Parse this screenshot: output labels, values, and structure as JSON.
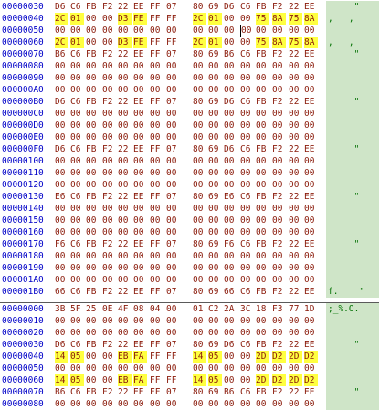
{
  "colors": {
    "address": "#0000c8",
    "bytes": "#8a1a0a",
    "highlight": "#ffff40",
    "ascii_bg": "#cfe5c8",
    "ascii_text": "#007000"
  },
  "section1": [
    {
      "addr": "00000030",
      "bytes": [
        "D6",
        "C6",
        "FB",
        "F2",
        "22",
        "EE",
        "FF",
        "07",
        "80",
        "69",
        "D6",
        "C6",
        "FB",
        "F2",
        "22",
        "EE"
      ],
      "hl": [],
      "ascii": "     \""
    },
    {
      "addr": "00000040",
      "bytes": [
        "2C",
        "01",
        "00",
        "00",
        "D3",
        "FE",
        "FF",
        "FF",
        "2C",
        "01",
        "00",
        "00",
        "75",
        "8A",
        "75",
        "8A"
      ],
      "hl": [
        0,
        1,
        4,
        5,
        8,
        9,
        12,
        13,
        14,
        15
      ],
      "ascii": ",   ,"
    },
    {
      "addr": "00000050",
      "bytes": [
        "00",
        "00",
        "00",
        "00",
        "00",
        "00",
        "00",
        "00",
        "00",
        "00",
        "00",
        "00",
        "00",
        "00",
        "00",
        "00"
      ],
      "hl": [],
      "ascii": "",
      "cursor": 11
    },
    {
      "addr": "00000060",
      "bytes": [
        "2C",
        "01",
        "00",
        "00",
        "D3",
        "FE",
        "FF",
        "FF",
        "2C",
        "01",
        "00",
        "00",
        "75",
        "8A",
        "75",
        "8A"
      ],
      "hl": [
        0,
        1,
        4,
        5,
        8,
        9,
        12,
        13,
        14,
        15
      ],
      "ascii": ",   ,"
    },
    {
      "addr": "00000070",
      "bytes": [
        "B6",
        "C6",
        "FB",
        "F2",
        "22",
        "EE",
        "FF",
        "07",
        "80",
        "69",
        "B6",
        "C6",
        "FB",
        "F2",
        "22",
        "EE"
      ],
      "hl": [],
      "ascii": "     \""
    },
    {
      "addr": "00000080",
      "bytes": [
        "00",
        "00",
        "00",
        "00",
        "00",
        "00",
        "00",
        "00",
        "00",
        "00",
        "00",
        "00",
        "00",
        "00",
        "00",
        "00"
      ],
      "hl": [],
      "ascii": ""
    },
    {
      "addr": "00000090",
      "bytes": [
        "00",
        "00",
        "00",
        "00",
        "00",
        "00",
        "00",
        "00",
        "00",
        "00",
        "00",
        "00",
        "00",
        "00",
        "00",
        "00"
      ],
      "hl": [],
      "ascii": ""
    },
    {
      "addr": "000000A0",
      "bytes": [
        "00",
        "00",
        "00",
        "00",
        "00",
        "00",
        "00",
        "00",
        "00",
        "00",
        "00",
        "00",
        "00",
        "00",
        "00",
        "00"
      ],
      "hl": [],
      "ascii": ""
    },
    {
      "addr": "000000B0",
      "bytes": [
        "D6",
        "C6",
        "FB",
        "F2",
        "22",
        "EE",
        "FF",
        "07",
        "80",
        "69",
        "D6",
        "C6",
        "FB",
        "F2",
        "22",
        "EE"
      ],
      "hl": [],
      "ascii": "     \""
    },
    {
      "addr": "000000C0",
      "bytes": [
        "00",
        "00",
        "00",
        "00",
        "00",
        "00",
        "00",
        "00",
        "00",
        "00",
        "00",
        "00",
        "00",
        "00",
        "00",
        "00"
      ],
      "hl": [],
      "ascii": ""
    },
    {
      "addr": "000000D0",
      "bytes": [
        "00",
        "00",
        "00",
        "00",
        "00",
        "00",
        "00",
        "00",
        "00",
        "00",
        "00",
        "00",
        "00",
        "00",
        "00",
        "00"
      ],
      "hl": [],
      "ascii": ""
    },
    {
      "addr": "000000E0",
      "bytes": [
        "00",
        "00",
        "00",
        "00",
        "00",
        "00",
        "00",
        "00",
        "00",
        "00",
        "00",
        "00",
        "00",
        "00",
        "00",
        "00"
      ],
      "hl": [],
      "ascii": ""
    },
    {
      "addr": "000000F0",
      "bytes": [
        "D6",
        "C6",
        "FB",
        "F2",
        "22",
        "EE",
        "FF",
        "07",
        "80",
        "69",
        "D6",
        "C6",
        "FB",
        "F2",
        "22",
        "EE"
      ],
      "hl": [],
      "ascii": "     \""
    },
    {
      "addr": "00000100",
      "bytes": [
        "00",
        "00",
        "00",
        "00",
        "00",
        "00",
        "00",
        "00",
        "00",
        "00",
        "00",
        "00",
        "00",
        "00",
        "00",
        "00"
      ],
      "hl": [],
      "ascii": ""
    },
    {
      "addr": "00000110",
      "bytes": [
        "00",
        "00",
        "00",
        "00",
        "00",
        "00",
        "00",
        "00",
        "00",
        "00",
        "00",
        "00",
        "00",
        "00",
        "00",
        "00"
      ],
      "hl": [],
      "ascii": ""
    },
    {
      "addr": "00000120",
      "bytes": [
        "00",
        "00",
        "00",
        "00",
        "00",
        "00",
        "00",
        "00",
        "00",
        "00",
        "00",
        "00",
        "00",
        "00",
        "00",
        "00"
      ],
      "hl": [],
      "ascii": ""
    },
    {
      "addr": "00000130",
      "bytes": [
        "E6",
        "C6",
        "FB",
        "F2",
        "22",
        "EE",
        "FF",
        "07",
        "80",
        "69",
        "E6",
        "C6",
        "FB",
        "F2",
        "22",
        "EE"
      ],
      "hl": [],
      "ascii": "     \""
    },
    {
      "addr": "00000140",
      "bytes": [
        "00",
        "00",
        "00",
        "00",
        "00",
        "00",
        "00",
        "00",
        "00",
        "00",
        "00",
        "00",
        "00",
        "00",
        "00",
        "00"
      ],
      "hl": [],
      "ascii": ""
    },
    {
      "addr": "00000150",
      "bytes": [
        "00",
        "00",
        "00",
        "00",
        "00",
        "00",
        "00",
        "00",
        "00",
        "00",
        "00",
        "00",
        "00",
        "00",
        "00",
        "00"
      ],
      "hl": [],
      "ascii": ""
    },
    {
      "addr": "00000160",
      "bytes": [
        "00",
        "00",
        "00",
        "00",
        "00",
        "00",
        "00",
        "00",
        "00",
        "00",
        "00",
        "00",
        "00",
        "00",
        "00",
        "00"
      ],
      "hl": [],
      "ascii": ""
    },
    {
      "addr": "00000170",
      "bytes": [
        "F6",
        "C6",
        "FB",
        "F2",
        "22",
        "EE",
        "FF",
        "07",
        "80",
        "69",
        "F6",
        "C6",
        "FB",
        "F2",
        "22",
        "EE"
      ],
      "hl": [],
      "ascii": "     \""
    },
    {
      "addr": "00000180",
      "bytes": [
        "00",
        "00",
        "00",
        "00",
        "00",
        "00",
        "00",
        "00",
        "00",
        "00",
        "00",
        "00",
        "00",
        "00",
        "00",
        "00"
      ],
      "hl": [],
      "ascii": ""
    },
    {
      "addr": "00000190",
      "bytes": [
        "00",
        "00",
        "00",
        "00",
        "00",
        "00",
        "00",
        "00",
        "00",
        "00",
        "00",
        "00",
        "00",
        "00",
        "00",
        "00"
      ],
      "hl": [],
      "ascii": ""
    },
    {
      "addr": "000001A0",
      "bytes": [
        "00",
        "00",
        "00",
        "00",
        "00",
        "00",
        "00",
        "00",
        "00",
        "00",
        "00",
        "00",
        "00",
        "00",
        "00",
        "00"
      ],
      "hl": [],
      "ascii": ""
    },
    {
      "addr": "000001B0",
      "bytes": [
        "66",
        "C6",
        "FB",
        "F2",
        "22",
        "EE",
        "FF",
        "07",
        "80",
        "69",
        "66",
        "C6",
        "FB",
        "F2",
        "22",
        "EE"
      ],
      "hl": [],
      "ascii": "f.    \""
    }
  ],
  "section2": [
    {
      "addr": "00000000",
      "bytes": [
        "3B",
        "5F",
        "25",
        "0E",
        "4F",
        "08",
        "04",
        "00",
        "01",
        "C2",
        "2A",
        "3C",
        "18",
        "F3",
        "77",
        "1D"
      ],
      "hl": [],
      "ascii": ";_%.O."
    },
    {
      "addr": "00000010",
      "bytes": [
        "00",
        "00",
        "00",
        "00",
        "00",
        "00",
        "00",
        "00",
        "00",
        "00",
        "00",
        "00",
        "00",
        "00",
        "00",
        "00"
      ],
      "hl": [],
      "ascii": ""
    },
    {
      "addr": "00000020",
      "bytes": [
        "00",
        "00",
        "00",
        "00",
        "00",
        "00",
        "00",
        "00",
        "00",
        "00",
        "00",
        "00",
        "00",
        "00",
        "00",
        "00"
      ],
      "hl": [],
      "ascii": ""
    },
    {
      "addr": "00000030",
      "bytes": [
        "D6",
        "C6",
        "FB",
        "F2",
        "22",
        "EE",
        "FF",
        "07",
        "80",
        "69",
        "D6",
        "C6",
        "FB",
        "F2",
        "22",
        "EE"
      ],
      "hl": [],
      "ascii": "     \""
    },
    {
      "addr": "00000040",
      "bytes": [
        "14",
        "05",
        "00",
        "00",
        "EB",
        "FA",
        "FF",
        "FF",
        "14",
        "05",
        "00",
        "00",
        "2D",
        "D2",
        "2D",
        "D2"
      ],
      "hl": [
        0,
        1,
        4,
        5,
        8,
        9,
        12,
        13,
        14,
        15
      ],
      "ascii": ""
    },
    {
      "addr": "00000050",
      "bytes": [
        "00",
        "00",
        "00",
        "00",
        "00",
        "00",
        "00",
        "00",
        "00",
        "00",
        "00",
        "00",
        "00",
        "00",
        "00",
        "00"
      ],
      "hl": [],
      "ascii": ""
    },
    {
      "addr": "00000060",
      "bytes": [
        "14",
        "05",
        "00",
        "00",
        "EB",
        "FA",
        "FF",
        "FF",
        "14",
        "05",
        "00",
        "00",
        "2D",
        "D2",
        "2D",
        "D2"
      ],
      "hl": [
        0,
        1,
        4,
        5,
        8,
        9,
        12,
        13,
        14,
        15
      ],
      "ascii": ""
    },
    {
      "addr": "00000070",
      "bytes": [
        "B6",
        "C6",
        "FB",
        "F2",
        "22",
        "EE",
        "FF",
        "07",
        "80",
        "69",
        "B6",
        "C6",
        "FB",
        "F2",
        "22",
        "EE"
      ],
      "hl": [],
      "ascii": "     \""
    },
    {
      "addr": "00000080",
      "bytes": [
        "00",
        "00",
        "00",
        "00",
        "00",
        "00",
        "00",
        "00",
        "00",
        "00",
        "00",
        "00",
        "00",
        "00",
        "00",
        "00"
      ],
      "hl": [],
      "ascii": ""
    }
  ]
}
